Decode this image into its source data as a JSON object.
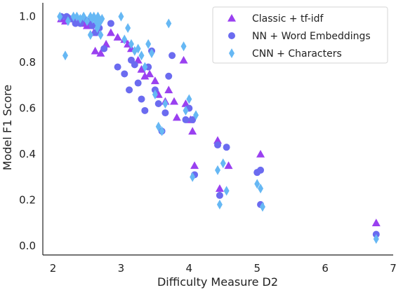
{
  "chart_data": {
    "type": "scatter",
    "xlabel": "Difficulty Measure D2",
    "ylabel": "Model F1 Score",
    "xlim": [
      1.85,
      7.0
    ],
    "ylim": [
      -0.04,
      1.06
    ],
    "xticks": [
      2,
      3,
      4,
      5,
      6,
      7
    ],
    "yticks": [
      0.0,
      0.2,
      0.4,
      0.6,
      0.8,
      1.0
    ],
    "xtick_labels": [
      "2",
      "3",
      "4",
      "5",
      "6",
      "7"
    ],
    "ytick_labels": [
      "0.0",
      "0.2",
      "0.4",
      "0.6",
      "0.8",
      "1.0"
    ],
    "grid": false,
    "legend": {
      "position": "top-right"
    },
    "series": [
      {
        "name": "Classic + tf-idf",
        "marker": "triangle",
        "color": "#9a40f0",
        "points": [
          [
            2.12,
            0.99
          ],
          [
            2.18,
            0.98
          ],
          [
            2.25,
            0.99
          ],
          [
            2.3,
            1.0
          ],
          [
            2.38,
            0.98
          ],
          [
            2.45,
            0.97
          ],
          [
            2.5,
            0.96
          ],
          [
            2.55,
            0.97
          ],
          [
            2.6,
            0.93
          ],
          [
            2.62,
            0.85
          ],
          [
            2.7,
            0.84
          ],
          [
            2.78,
            0.88
          ],
          [
            2.85,
            0.93
          ],
          [
            2.95,
            0.91
          ],
          [
            3.05,
            0.9
          ],
          [
            3.1,
            0.88
          ],
          [
            3.15,
            0.86
          ],
          [
            3.25,
            0.81
          ],
          [
            3.3,
            0.77
          ],
          [
            3.35,
            0.74
          ],
          [
            3.42,
            0.75
          ],
          [
            3.5,
            0.72
          ],
          [
            3.55,
            0.66
          ],
          [
            3.65,
            0.63
          ],
          [
            3.7,
            0.68
          ],
          [
            3.78,
            0.63
          ],
          [
            3.82,
            0.56
          ],
          [
            3.92,
            0.81
          ],
          [
            3.95,
            0.62
          ],
          [
            4.02,
            0.55
          ],
          [
            4.05,
            0.5
          ],
          [
            4.08,
            0.35
          ],
          [
            4.42,
            0.46
          ],
          [
            4.45,
            0.25
          ],
          [
            4.58,
            0.35
          ],
          [
            5.05,
            0.4
          ],
          [
            6.75,
            0.1
          ]
        ]
      },
      {
        "name": "NN + Word Embeddings",
        "marker": "circle",
        "color": "#6b6bf0",
        "points": [
          [
            2.12,
            1.0
          ],
          [
            2.2,
            1.0
          ],
          [
            2.28,
            0.99
          ],
          [
            2.33,
            0.97
          ],
          [
            2.4,
            0.97
          ],
          [
            2.45,
            0.99
          ],
          [
            2.52,
            0.98
          ],
          [
            2.58,
            0.96
          ],
          [
            2.63,
            0.93
          ],
          [
            2.68,
            0.95
          ],
          [
            2.75,
            0.86
          ],
          [
            2.85,
            0.97
          ],
          [
            2.95,
            0.78
          ],
          [
            3.05,
            0.75
          ],
          [
            3.12,
            0.68
          ],
          [
            3.15,
            0.81
          ],
          [
            3.2,
            0.79
          ],
          [
            3.25,
            0.71
          ],
          [
            3.3,
            0.64
          ],
          [
            3.35,
            0.59
          ],
          [
            3.4,
            0.78
          ],
          [
            3.45,
            0.85
          ],
          [
            3.5,
            0.68
          ],
          [
            3.55,
            0.62
          ],
          [
            3.6,
            0.5
          ],
          [
            3.65,
            0.58
          ],
          [
            3.7,
            0.74
          ],
          [
            3.75,
            0.83
          ],
          [
            3.95,
            0.55
          ],
          [
            4.0,
            0.6
          ],
          [
            4.05,
            0.55
          ],
          [
            4.08,
            0.31
          ],
          [
            4.42,
            0.44
          ],
          [
            4.45,
            0.22
          ],
          [
            4.55,
            0.43
          ],
          [
            5.0,
            0.32
          ],
          [
            5.05,
            0.33
          ],
          [
            5.05,
            0.18
          ],
          [
            6.75,
            0.05
          ]
        ]
      },
      {
        "name": "CNN + Characters",
        "marker": "diamond",
        "color": "#66b8f4",
        "points": [
          [
            2.1,
            1.0
          ],
          [
            2.18,
            0.83
          ],
          [
            2.22,
            0.98
          ],
          [
            2.3,
            1.0
          ],
          [
            2.35,
            1.0
          ],
          [
            2.4,
            0.99
          ],
          [
            2.45,
            1.0
          ],
          [
            2.5,
            0.98
          ],
          [
            2.55,
            1.0
          ],
          [
            2.58,
            0.99
          ],
          [
            2.6,
            1.0
          ],
          [
            2.63,
            0.98
          ],
          [
            2.66,
            1.0
          ],
          [
            2.68,
            0.97
          ],
          [
            2.72,
            0.99
          ],
          [
            2.55,
            0.92
          ],
          [
            2.65,
            0.95
          ],
          [
            2.7,
            0.92
          ],
          [
            3.0,
            1.0
          ],
          [
            3.05,
            0.9
          ],
          [
            3.1,
            0.95
          ],
          [
            3.15,
            0.88
          ],
          [
            3.2,
            0.85
          ],
          [
            3.25,
            0.86
          ],
          [
            3.3,
            0.83
          ],
          [
            3.35,
            0.78
          ],
          [
            3.4,
            0.88
          ],
          [
            3.45,
            0.84
          ],
          [
            3.5,
            0.66
          ],
          [
            3.55,
            0.52
          ],
          [
            3.6,
            0.5
          ],
          [
            3.65,
            0.62
          ],
          [
            3.7,
            0.97
          ],
          [
            3.92,
            0.87
          ],
          [
            3.95,
            0.59
          ],
          [
            4.0,
            0.64
          ],
          [
            4.05,
            0.3
          ],
          [
            4.1,
            0.57
          ],
          [
            4.42,
            0.33
          ],
          [
            4.45,
            0.18
          ],
          [
            4.5,
            0.36
          ],
          [
            4.55,
            0.24
          ],
          [
            5.0,
            0.27
          ],
          [
            5.05,
            0.25
          ],
          [
            5.08,
            0.17
          ],
          [
            6.75,
            0.03
          ]
        ]
      }
    ]
  }
}
